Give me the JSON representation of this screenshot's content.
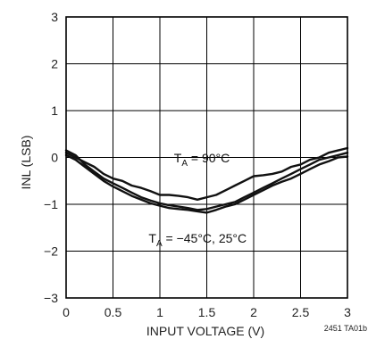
{
  "chart_data": {
    "type": "line",
    "xlabel": "INPUT VOLTAGE (V)",
    "ylabel": "INL (LSB)",
    "xlim": [
      0,
      3
    ],
    "ylim": [
      -3,
      3
    ],
    "xticks": [
      0,
      0.5,
      1,
      1.5,
      2,
      2.5,
      3
    ],
    "xtick_labels": [
      "0",
      "0.5",
      "1",
      "1.5",
      "2",
      "2.5",
      "3"
    ],
    "yticks": [
      -3,
      -2,
      -1,
      0,
      1,
      2,
      3
    ],
    "ytick_labels": [
      "−3",
      "−2",
      "−1",
      "0",
      "1",
      "2",
      "3"
    ],
    "grid": true,
    "legend": "none",
    "figure_note": "2451 TA01b",
    "annotations": [
      {
        "main": "T",
        "sub": "A",
        "rest": " = 90°C",
        "x": 1.15,
        "y": -0.1
      },
      {
        "main": "T",
        "sub": "A",
        "rest": " = −45°C, 25°C",
        "x": 0.88,
        "y": -1.82
      }
    ],
    "series": [
      {
        "x": [
          0,
          0.1,
          0.2,
          0.3,
          0.4,
          0.5,
          0.6,
          0.7,
          0.8,
          0.9,
          1.0,
          1.1,
          1.2,
          1.3,
          1.4,
          1.5,
          1.6,
          1.7,
          1.8,
          1.9,
          2.0,
          2.1,
          2.2,
          2.3,
          2.4,
          2.5,
          2.6,
          2.7,
          2.8,
          2.9,
          3.0
        ],
        "values": [
          0.1,
          0.0,
          -0.1,
          -0.2,
          -0.35,
          -0.45,
          -0.5,
          -0.6,
          -0.65,
          -0.72,
          -0.8,
          -0.8,
          -0.82,
          -0.85,
          -0.9,
          -0.85,
          -0.8,
          -0.7,
          -0.6,
          -0.5,
          -0.4,
          -0.38,
          -0.35,
          -0.3,
          -0.2,
          -0.15,
          -0.05,
          0.0,
          0.1,
          0.15,
          0.2
        ],
        "color": "#111111"
      },
      {
        "x": [
          0,
          0.1,
          0.2,
          0.3,
          0.4,
          0.5,
          0.6,
          0.7,
          0.8,
          0.9,
          1.0,
          1.1,
          1.2,
          1.3,
          1.4,
          1.5,
          1.6,
          1.7,
          1.8,
          1.9,
          2.0,
          2.1,
          2.2,
          2.3,
          2.4,
          2.5,
          2.6,
          2.7,
          2.8,
          2.9,
          3.0
        ],
        "values": [
          0.15,
          0.05,
          -0.15,
          -0.3,
          -0.45,
          -0.55,
          -0.65,
          -0.75,
          -0.85,
          -0.92,
          -0.98,
          -1.02,
          -1.05,
          -1.08,
          -1.12,
          -1.1,
          -1.05,
          -1.0,
          -0.95,
          -0.85,
          -0.75,
          -0.65,
          -0.55,
          -0.45,
          -0.35,
          -0.25,
          -0.15,
          -0.05,
          0.0,
          0.05,
          0.1
        ],
        "color": "#111111"
      },
      {
        "x": [
          0,
          0.1,
          0.2,
          0.3,
          0.4,
          0.5,
          0.6,
          0.7,
          0.8,
          0.9,
          1.0,
          1.1,
          1.2,
          1.3,
          1.4,
          1.5,
          1.6,
          1.7,
          1.8,
          1.9,
          2.0,
          2.1,
          2.2,
          2.3,
          2.4,
          2.5,
          2.6,
          2.7,
          2.8,
          2.9,
          3.0
        ],
        "values": [
          0.05,
          -0.05,
          -0.2,
          -0.35,
          -0.5,
          -0.62,
          -0.72,
          -0.82,
          -0.9,
          -0.98,
          -1.03,
          -1.08,
          -1.1,
          -1.12,
          -1.15,
          -1.18,
          -1.12,
          -1.05,
          -1.0,
          -0.9,
          -0.8,
          -0.7,
          -0.6,
          -0.52,
          -0.45,
          -0.35,
          -0.25,
          -0.15,
          -0.08,
          0.0,
          0.02
        ],
        "color": "#111111"
      }
    ]
  }
}
